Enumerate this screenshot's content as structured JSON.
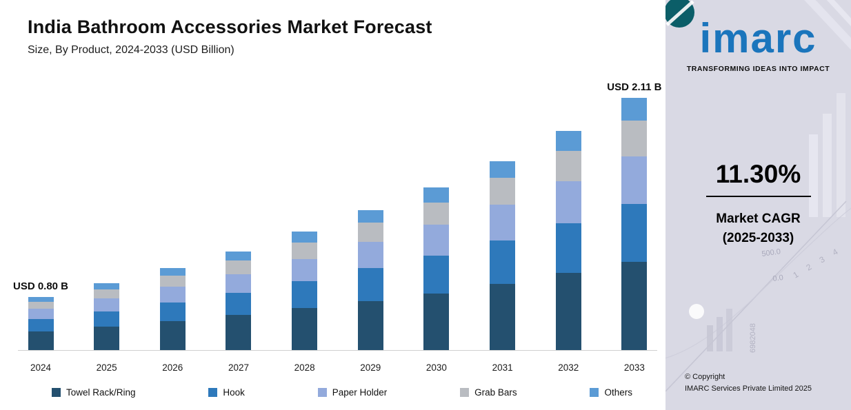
{
  "chart_data": {
    "type": "bar",
    "stacked": true,
    "title": "India Bathroom Accessories Market Forecast",
    "subtitle": "Size, By Product, 2024-2033 (USD Billion)",
    "units": "USD Billion",
    "categories": [
      "2024",
      "2025",
      "2026",
      "2027",
      "2028",
      "2029",
      "2030",
      "2031",
      "2032",
      "2033"
    ],
    "series": [
      {
        "name": "Towel Rack/Ring",
        "color": "#24506f",
        "values": [
          0.28,
          0.31,
          0.35,
          0.39,
          0.43,
          0.48,
          0.53,
          0.59,
          0.66,
          0.74
        ]
      },
      {
        "name": "Hook",
        "color": "#2e79bb",
        "values": [
          0.18,
          0.2,
          0.23,
          0.25,
          0.28,
          0.32,
          0.35,
          0.39,
          0.43,
          0.49
        ]
      },
      {
        "name": "Paper Holder",
        "color": "#93aadc",
        "values": [
          0.15,
          0.17,
          0.19,
          0.21,
          0.23,
          0.26,
          0.29,
          0.32,
          0.36,
          0.4
        ]
      },
      {
        "name": "Grab Bars",
        "color": "#b9bcc1",
        "values": [
          0.11,
          0.12,
          0.14,
          0.15,
          0.17,
          0.19,
          0.21,
          0.24,
          0.26,
          0.3
        ]
      },
      {
        "name": "Others",
        "color": "#5b9bd5",
        "values": [
          0.07,
          0.08,
          0.09,
          0.1,
          0.11,
          0.12,
          0.14,
          0.15,
          0.17,
          0.19
        ]
      }
    ],
    "totals": [
      0.8,
      0.89,
      0.99,
      1.1,
      1.23,
      1.37,
      1.52,
      1.69,
      1.89,
      2.11
    ],
    "annotations": [
      {
        "category": "2024",
        "text": "USD 0.80 B"
      },
      {
        "category": "2033",
        "text": "USD 2.11 B"
      }
    ],
    "legend_position": "bottom",
    "gridlines": false,
    "axis_hint": {
      "y_min": 0.45,
      "y_max": 2.15
    }
  },
  "sidebar": {
    "logo_text": "imarc",
    "tagline": "TRANSFORMING IDEAS INTO IMPACT",
    "cagr_value": "11.30%",
    "cagr_label_line1": "Market CAGR",
    "cagr_label_line2": "(2025-2033)",
    "copyright_line1": "© Copyright",
    "copyright_line2": "IMARC Services Private Limited 2025",
    "watermark_texts": [
      "500.0",
      "0.0",
      "1 2 3 4",
      "6982048"
    ]
  },
  "colors": {
    "logo_blue": "#1b75bc",
    "sidebar_bg": "#d9d9e4",
    "annotation_text": "#0d0d0d",
    "axis_line": "#cfcfcf"
  }
}
